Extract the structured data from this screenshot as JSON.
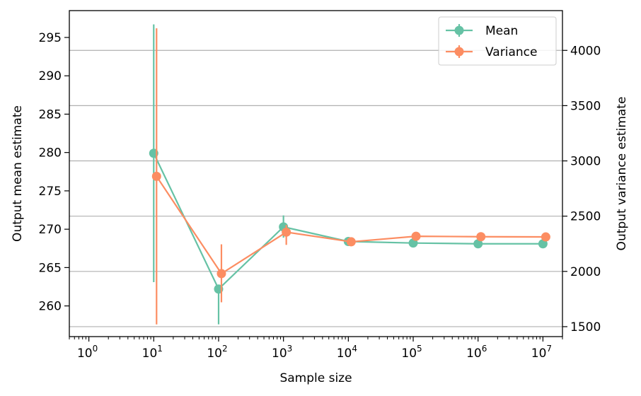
{
  "chart_data": {
    "type": "line",
    "x_scale": "log",
    "xlabel": "Sample size",
    "ylabel_left": "Output mean estimate",
    "ylabel_right": "Output variance estimate",
    "x_tick_labels": [
      {
        "base": "10",
        "exp": "0"
      },
      {
        "base": "10",
        "exp": "1"
      },
      {
        "base": "10",
        "exp": "2"
      },
      {
        "base": "10",
        "exp": "3"
      },
      {
        "base": "10",
        "exp": "4"
      },
      {
        "base": "10",
        "exp": "5"
      },
      {
        "base": "10",
        "exp": "6"
      },
      {
        "base": "10",
        "exp": "7"
      }
    ],
    "xlim": [
      0.5,
      20000000
    ],
    "ylim_left": [
      256,
      298.5
    ],
    "ylim_right": [
      1410,
      4360
    ],
    "left_ticks": [
      260,
      265,
      270,
      275,
      280,
      285,
      290,
      295
    ],
    "right_ticks": [
      1500,
      2000,
      2500,
      3000,
      3500,
      4000
    ],
    "grid": "horizontal, right axis",
    "legend_position": "top-right",
    "series": [
      {
        "name": "Mean",
        "axis": "left",
        "color": "#66c2a5",
        "x": [
          10,
          100,
          1000,
          10000,
          100000,
          1000000,
          10000000
        ],
        "y": [
          279.9,
          262.2,
          270.3,
          268.4,
          268.2,
          268.1,
          268.1
        ],
        "y_err_low": [
          263.1,
          257.6,
          268.9,
          268.4,
          268.2,
          268.1,
          268.1
        ],
        "y_err_high": [
          296.7,
          262.2,
          271.8,
          268.4,
          268.2,
          268.1,
          268.1
        ]
      },
      {
        "name": "Variance",
        "axis": "right",
        "color": "#fc8d62",
        "x": [
          10,
          100,
          1000,
          10000,
          100000,
          1000000,
          10000000
        ],
        "y": [
          2860,
          1980,
          2355,
          2268,
          2318,
          2314,
          2312
        ],
        "y_err_low": [
          1520,
          1720,
          2240,
          2268,
          2318,
          2314,
          2312
        ],
        "y_err_high": [
          4200,
          2245,
          2420,
          2268,
          2318,
          2314,
          2312
        ]
      }
    ]
  }
}
